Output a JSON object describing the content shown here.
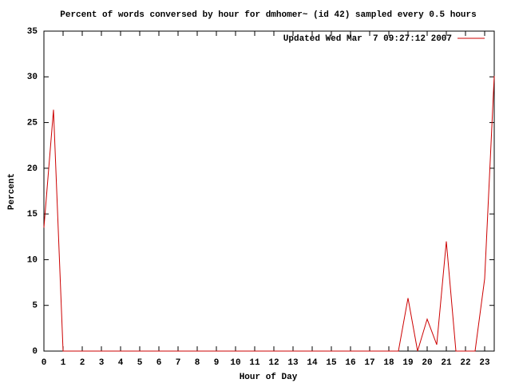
{
  "chart_data": {
    "type": "line",
    "title": "Percent of words conversed by hour for dmhomer~ (id 42) sampled every 0.5 hours",
    "x_label": "Hour of Day",
    "y_label": "Percent",
    "x": [
      0,
      0.5,
      1,
      1.5,
      2,
      2.5,
      3,
      3.5,
      4,
      4.5,
      5,
      5.5,
      6,
      6.5,
      7,
      7.5,
      8,
      8.5,
      9,
      9.5,
      10,
      10.5,
      11,
      11.5,
      12,
      12.5,
      13,
      13.5,
      14,
      14.5,
      15,
      15.5,
      16,
      16.5,
      17,
      17.5,
      18,
      18.5,
      19,
      19.5,
      20,
      20.5,
      21,
      21.5,
      22,
      22.5,
      23,
      23.5
    ],
    "series": [
      {
        "name": "Updated Wed Mar  7 09:27:12 2007",
        "color": "#cc0000",
        "values": [
          13.5,
          26.4,
          0,
          0,
          0,
          0,
          0,
          0,
          0,
          0,
          0,
          0,
          0,
          0,
          0,
          0,
          0,
          0,
          0,
          0,
          0,
          0,
          0,
          0,
          0,
          0,
          0,
          0,
          0,
          0,
          0,
          0,
          0,
          0,
          0,
          0,
          0,
          0,
          5.8,
          0,
          3.5,
          0.7,
          12,
          0,
          0,
          0,
          7.9,
          30.1
        ]
      }
    ],
    "xlim": [
      0,
      23.5
    ],
    "xticks": [
      0,
      1,
      2,
      3,
      4,
      5,
      6,
      7,
      8,
      9,
      10,
      11,
      12,
      13,
      14,
      15,
      16,
      17,
      18,
      19,
      20,
      21,
      22,
      23
    ],
    "ylim": [
      0,
      35
    ],
    "yticks": [
      0,
      5,
      10,
      15,
      20,
      25,
      30,
      35
    ],
    "legend": "top-right",
    "grid": false
  }
}
